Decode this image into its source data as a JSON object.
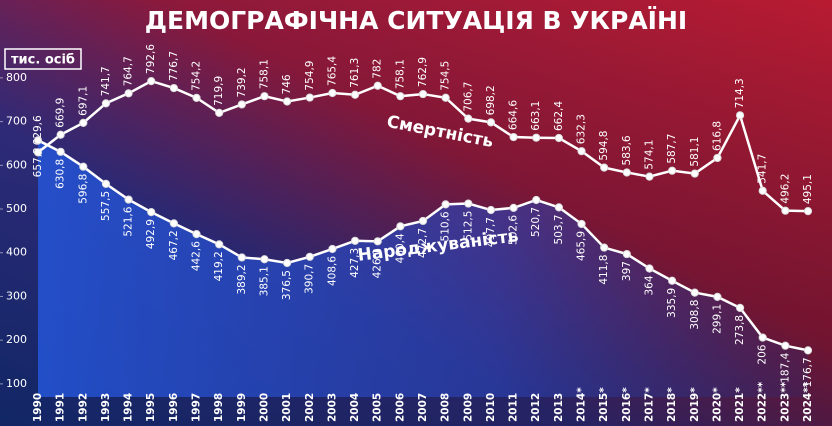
{
  "chart_data": {
    "type": "line",
    "title": "ДЕМОГРАФІЧНА СИТУАЦІЯ В УКРАЇНІ",
    "y_label": "тис. осіб",
    "categories": [
      "1990",
      "1991",
      "1992",
      "1993",
      "1994",
      "1995",
      "1996",
      "1997",
      "1998",
      "1999",
      "2000",
      "2001",
      "2002",
      "2003",
      "2004",
      "2005",
      "2006",
      "2007",
      "2008",
      "2009",
      "2010",
      "2011",
      "2012",
      "2013",
      "2014*",
      "2015*",
      "2016*",
      "2017*",
      "2018*",
      "2019*",
      "2020*",
      "2021*",
      "2022**",
      "2023**",
      "2024**"
    ],
    "series": [
      {
        "name": "Смертність",
        "color": "#ffffff",
        "label_side": "above",
        "values": [
          629.6,
          669.9,
          697.1,
          741.7,
          764.7,
          792.6,
          776.7,
          754.2,
          719.9,
          739.2,
          758.1,
          746,
          754.9,
          765.4,
          761.3,
          782,
          758.1,
          762.9,
          754.5,
          706.7,
          698.2,
          664.6,
          663.1,
          662.4,
          632.3,
          594.8,
          583.6,
          574.1,
          587.7,
          581.1,
          616.8,
          714.3,
          541.7,
          496.2,
          495.1
        ],
        "value_labels": [
          "629,6",
          "669,9",
          "697,1",
          "741,7",
          "764,7",
          "792,6",
          "776,7",
          "754,2",
          "719,9",
          "739,2",
          "758,1",
          "746",
          "754,9",
          "765,4",
          "761,3",
          "782",
          "758,1",
          "762,9",
          "754,5",
          "706,7",
          "698,2",
          "664,6",
          "663,1",
          "662,4",
          "632,3",
          "594,8",
          "583,6",
          "574,1",
          "587,7",
          "581,1",
          "616,8",
          "714,3",
          "541,7",
          "496,2",
          "495,1"
        ]
      },
      {
        "name": "Народжуваність",
        "color": "#ffffff",
        "label_side": "below",
        "values": [
          657.2,
          630.8,
          596.8,
          557.5,
          521.6,
          492.9,
          467.2,
          442.6,
          419.2,
          389.2,
          385.1,
          376.5,
          390.7,
          408.6,
          427.3,
          426.1,
          460.4,
          472.7,
          510.6,
          512.5,
          497.7,
          502.6,
          520.7,
          503.7,
          465.9,
          411.8,
          397,
          364,
          335.9,
          308.8,
          299.1,
          273.8,
          206,
          187.4,
          176.7
        ],
        "value_labels": [
          "657,2",
          "630,8",
          "596,8",
          "557,5",
          "521,6",
          "492,9",
          "467,2",
          "442,6",
          "419,2",
          "389,2",
          "385,1",
          "376,5",
          "390,7",
          "408,6",
          "427,3",
          "426,1",
          "460,4",
          "472,7",
          "510,6",
          "512,5",
          "497,7",
          "502,6",
          "520,7",
          "503,7",
          "465,9",
          "411,8",
          "397",
          "364",
          "335,9",
          "308,8",
          "299,1",
          "273,8",
          "206",
          "187,4",
          "176,7"
        ]
      }
    ],
    "ylim": [
      70,
      850
    ],
    "yticks": [
      100,
      200,
      300,
      400,
      500,
      600,
      700,
      800
    ],
    "grid": false
  }
}
